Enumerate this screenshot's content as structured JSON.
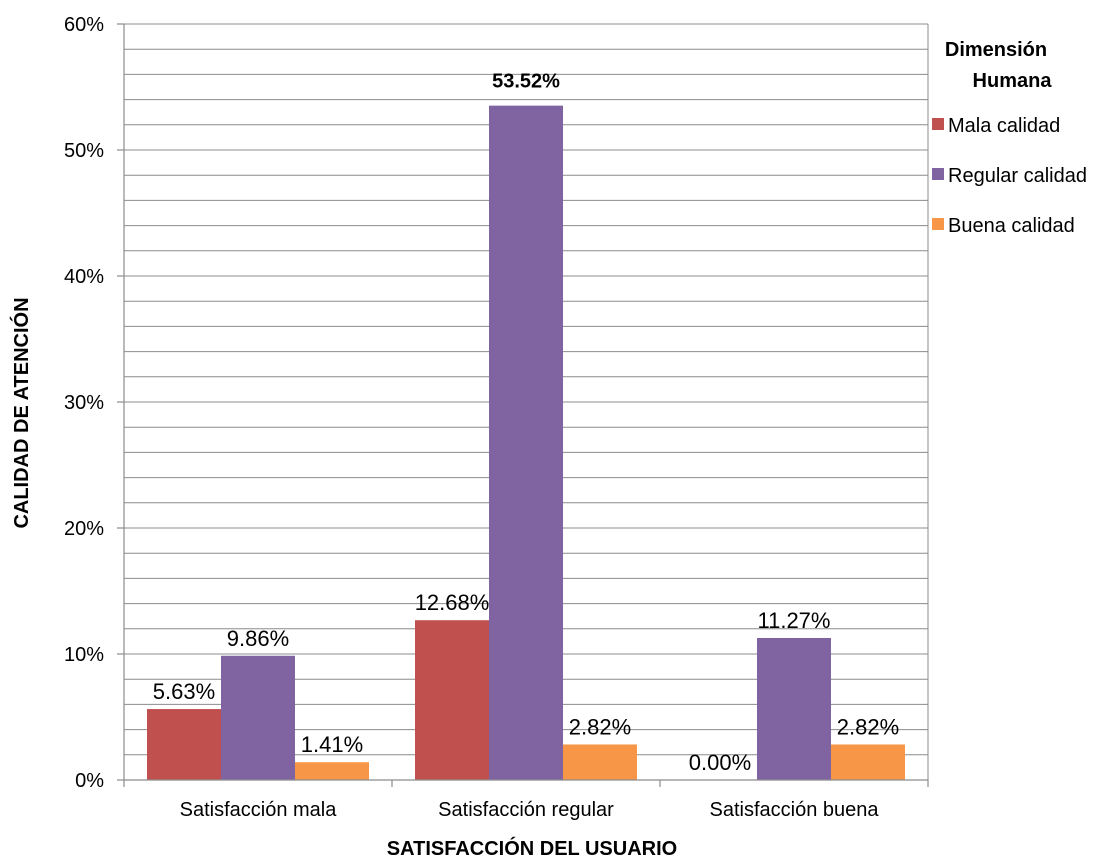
{
  "chart_data": {
    "type": "bar",
    "title": "",
    "xlabel": "SATISFACCIÓN DEL USUARIO",
    "ylabel": "CALIDAD DE ATENCIÓN",
    "ylim": [
      0,
      60
    ],
    "y_ticks": [
      "0%",
      "10%",
      "20%",
      "30%",
      "40%",
      "50%",
      "60%"
    ],
    "grid": true,
    "legend_position": "right",
    "legend_title_lines": [
      "Dimensión",
      "Humana"
    ],
    "categories": [
      "Satisfacción mala",
      "Satisfacción regular",
      "Satisfacción buena"
    ],
    "series": [
      {
        "name": "Mala calidad",
        "color": "#c0504d",
        "values": [
          5.63,
          12.68,
          0.0
        ],
        "labels": [
          "5.63%",
          "12.68%",
          "0.00%"
        ]
      },
      {
        "name": "Regular calidad",
        "color": "#8064a2",
        "values": [
          9.86,
          53.52,
          11.27
        ],
        "labels": [
          "9.86%",
          "53.52%",
          "11.27%"
        ]
      },
      {
        "name": "Buena calidad",
        "color": "#f79646",
        "values": [
          1.41,
          2.82,
          2.82
        ],
        "labels": [
          "1.41%",
          "2.82%",
          "2.82%"
        ]
      }
    ]
  }
}
